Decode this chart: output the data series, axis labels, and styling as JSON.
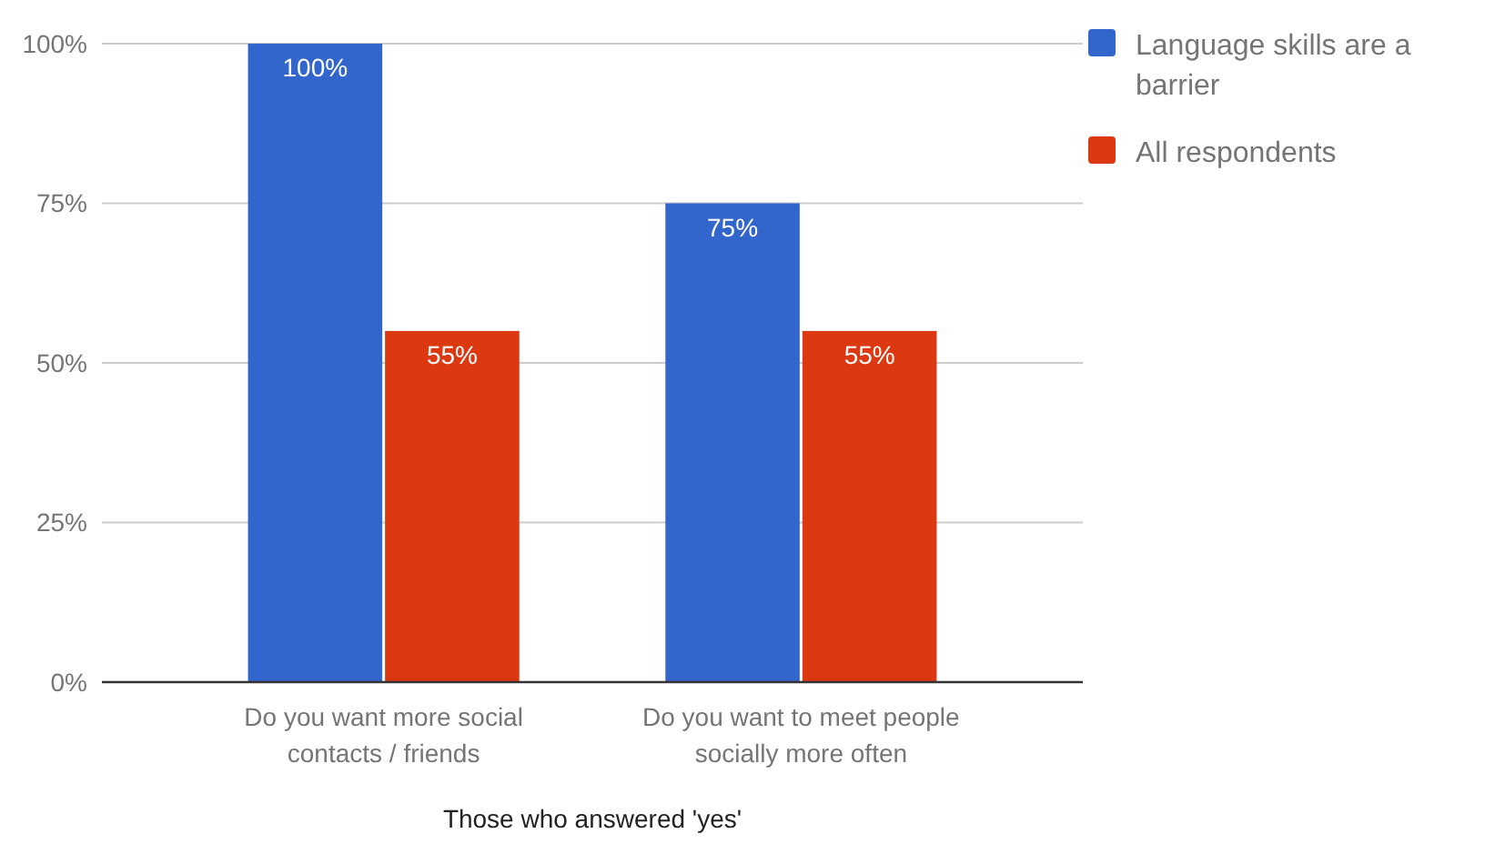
{
  "chart_data": {
    "type": "bar",
    "xlabel": "Those who answered 'yes'",
    "categories": [
      "Do you want more social contacts / friends",
      "Do you want to meet people socially more often"
    ],
    "series": [
      {
        "name": "Language skills are a barrier",
        "color": "#3366cc",
        "values": [
          100,
          75
        ],
        "value_labels": [
          "100%",
          "75%"
        ]
      },
      {
        "name": "All respondents",
        "color": "#dc3912",
        "values": [
          55,
          55
        ],
        "value_labels": [
          "55%",
          "55%"
        ]
      }
    ],
    "ylim": [
      0,
      100
    ],
    "yticks": [
      {
        "value": 0,
        "label": "0%"
      },
      {
        "value": 25,
        "label": "25%"
      },
      {
        "value": 50,
        "label": "50%"
      },
      {
        "value": 75,
        "label": "75%"
      },
      {
        "value": 100,
        "label": "100%"
      }
    ],
    "grid": "y",
    "legend": "top right"
  }
}
